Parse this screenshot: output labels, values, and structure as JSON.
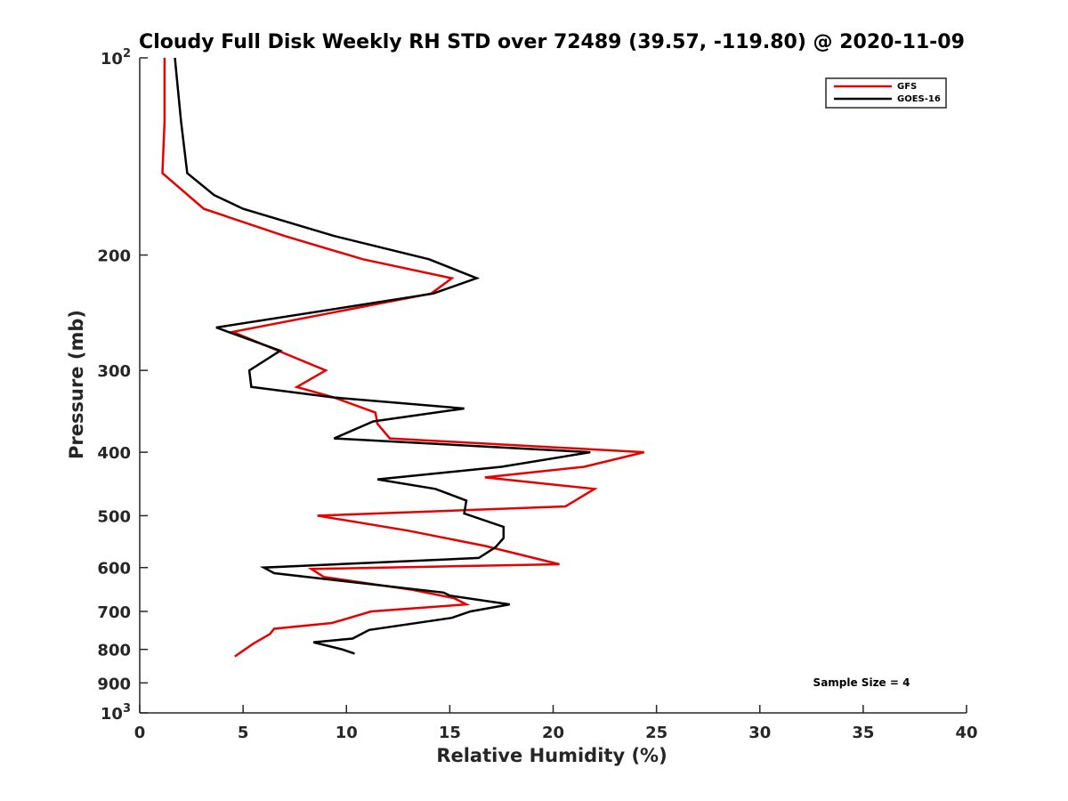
{
  "chart_data": {
    "type": "line",
    "title": "Cloudy Full Disk Weekly RH STD over 72489 (39.57, -119.80) @ 2020-11-09",
    "xlabel": "Relative Humidity (%)",
    "ylabel": "Pressure (mb)",
    "xlim": [
      0,
      40
    ],
    "ylim": [
      100,
      1000
    ],
    "y_scale": "log",
    "y_reversed": true,
    "xticks": [
      0,
      5,
      10,
      15,
      20,
      25,
      30,
      35,
      40
    ],
    "yticks": [
      {
        "value": 100,
        "base": "10",
        "exp": "2"
      },
      {
        "value": 200,
        "label": "200"
      },
      {
        "value": 300,
        "label": "300"
      },
      {
        "value": 400,
        "label": "400"
      },
      {
        "value": 500,
        "label": "500"
      },
      {
        "value": 600,
        "label": "600"
      },
      {
        "value": 700,
        "label": "700"
      },
      {
        "value": 800,
        "label": "800"
      },
      {
        "value": 900,
        "label": "900"
      },
      {
        "value": 1000,
        "base": "10",
        "exp": "3"
      }
    ],
    "grid": false,
    "legend_position": "top-right",
    "annotation": "Sample Size = 4",
    "series": [
      {
        "name": "GFS",
        "color": "#e60000",
        "points": [
          [
            1.2,
            100
          ],
          [
            1.2,
            125
          ],
          [
            1.1,
            150
          ],
          [
            3.1,
            170
          ],
          [
            7.0,
            187
          ],
          [
            10.8,
            203
          ],
          [
            15.1,
            217
          ],
          [
            14.1,
            229
          ],
          [
            4.5,
            262
          ],
          [
            6.7,
            280
          ],
          [
            9.0,
            300
          ],
          [
            7.6,
            318
          ],
          [
            9.4,
            330
          ],
          [
            11.4,
            348
          ],
          [
            11.5,
            362
          ],
          [
            12.1,
            381
          ],
          [
            24.4,
            400
          ],
          [
            21.5,
            421
          ],
          [
            16.7,
            437
          ],
          [
            22.0,
            455
          ],
          [
            20.6,
            484
          ],
          [
            8.6,
            500
          ],
          [
            13.0,
            527
          ],
          [
            16.7,
            556
          ],
          [
            20.3,
            593
          ],
          [
            8.3,
            603
          ],
          [
            8.9,
            620
          ],
          [
            13.2,
            649
          ],
          [
            15.2,
            668
          ],
          [
            15.8,
            683
          ],
          [
            11.2,
            700
          ],
          [
            9.3,
            729
          ],
          [
            6.5,
            744
          ],
          [
            6.3,
            758
          ],
          [
            5.5,
            784
          ],
          [
            4.6,
            820
          ]
        ]
      },
      {
        "name": "GOES-16",
        "color": "#000000",
        "points": [
          [
            1.7,
            100
          ],
          [
            2.0,
            125
          ],
          [
            2.3,
            150
          ],
          [
            3.6,
            162
          ],
          [
            5.0,
            170
          ],
          [
            9.4,
            187
          ],
          [
            14.0,
            203
          ],
          [
            16.3,
            217
          ],
          [
            14.2,
            229
          ],
          [
            3.7,
            258
          ],
          [
            6.8,
            280
          ],
          [
            5.3,
            300
          ],
          [
            5.4,
            318
          ],
          [
            9.4,
            330
          ],
          [
            15.7,
            343
          ],
          [
            11.3,
            359
          ],
          [
            9.4,
            381
          ],
          [
            21.8,
            400
          ],
          [
            17.5,
            421
          ],
          [
            11.5,
            440
          ],
          [
            14.3,
            455
          ],
          [
            15.8,
            474
          ],
          [
            15.7,
            496
          ],
          [
            17.6,
            520
          ],
          [
            17.6,
            541
          ],
          [
            17.2,
            559
          ],
          [
            16.4,
            580
          ],
          [
            6.0,
            600
          ],
          [
            6.5,
            612
          ],
          [
            14.7,
            655
          ],
          [
            15.0,
            662
          ],
          [
            17.9,
            683
          ],
          [
            16.0,
            700
          ],
          [
            15.1,
            716
          ],
          [
            11.1,
            747
          ],
          [
            10.3,
            770
          ],
          [
            8.4,
            780
          ],
          [
            9.8,
            800
          ],
          [
            10.4,
            812
          ]
        ]
      }
    ]
  }
}
